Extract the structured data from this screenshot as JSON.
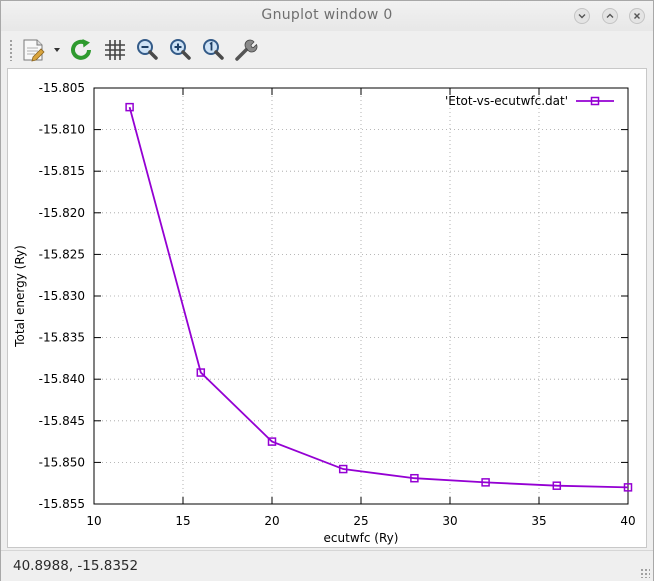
{
  "window": {
    "title": "Gnuplot window 0"
  },
  "toolbar": {
    "buttons": [
      {
        "icon": "export-icon"
      },
      {
        "icon": "replot-icon"
      },
      {
        "icon": "grid-icon"
      },
      {
        "icon": "zoom-out-icon"
      },
      {
        "icon": "zoom-in-icon"
      },
      {
        "icon": "zoom-reset-icon"
      },
      {
        "icon": "settings-icon"
      }
    ]
  },
  "status": {
    "coordinates": "40.8988, -15.8352"
  },
  "chart_data": {
    "type": "line",
    "title": "",
    "xlabel": "ecutwfc (Ry)",
    "ylabel": "Total energy (Ry)",
    "xlim": [
      10,
      40
    ],
    "ylim": [
      -15.855,
      -15.805
    ],
    "xticks": [
      10,
      15,
      20,
      25,
      30,
      35,
      40
    ],
    "yticks": [
      "-15.805",
      "-15.810",
      "-15.815",
      "-15.820",
      "-15.825",
      "-15.830",
      "-15.835",
      "-15.840",
      "-15.845",
      "-15.850",
      "-15.855"
    ],
    "grid": true,
    "legend_position": "top-right",
    "series": [
      {
        "name": "'Etot-vs-ecutwfc.dat'",
        "color": "#9400d3",
        "marker": "square",
        "x": [
          12,
          16,
          20,
          24,
          28,
          32,
          36,
          40
        ],
        "y": [
          -15.8073,
          -15.8392,
          -15.8475,
          -15.8508,
          -15.8519,
          -15.8524,
          -15.8528,
          -15.853
        ]
      }
    ]
  }
}
